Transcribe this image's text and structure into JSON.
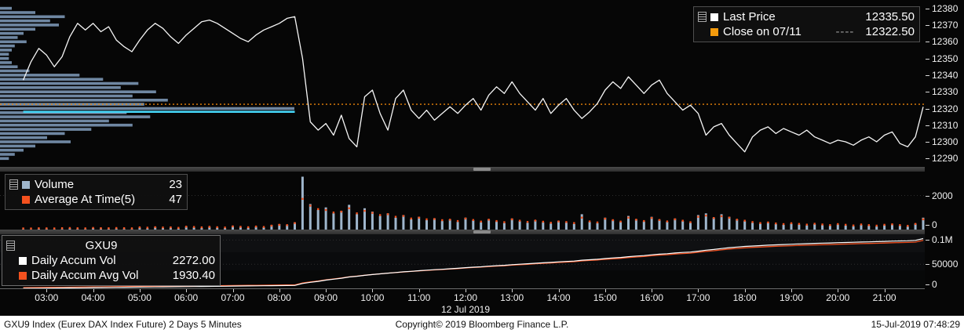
{
  "colors": {
    "background": "#060606",
    "axis_text": "#f0f0f0",
    "price_line": "#f5f5f5",
    "close_line": "#e8830a",
    "close_swatch": "#f59b0c",
    "poc_line": "#45d4f5",
    "profile_bar": "#7e9ab8",
    "volume_bar": "#9fb6cc",
    "avg_dot": "#f4511e",
    "accum_line": "#ffffff",
    "accum_avg_line": "#f04f1f",
    "legend_bg": "#151515",
    "legend_border": "#4e4e4e",
    "separator": "#3f3f3f",
    "status_bg": "#ffffff",
    "status_text": "#111111"
  },
  "top_panel": {
    "legend": {
      "last_price_label": "Last Price",
      "last_price_value": "12335.50",
      "close_label": "Close on 07/11",
      "close_dash": "----",
      "close_value": "12322.50"
    }
  },
  "volume_panel": {
    "legend": {
      "volume_label": "Volume",
      "volume_value": "23",
      "avg_label": "Average At Time(5)",
      "avg_value": "47"
    }
  },
  "accum_panel": {
    "title": "GXU9",
    "legend": {
      "accum_label": "Daily Accum Vol",
      "accum_value": "2272.00",
      "avg_label": "Daily Accum Avg Vol",
      "avg_value": "1930.40"
    }
  },
  "x_axis": {
    "tick_minutes": [
      180,
      240,
      300,
      360,
      420,
      480,
      540,
      600,
      660,
      720,
      780,
      840,
      900,
      960,
      1020,
      1080,
      1140,
      1200,
      1260
    ],
    "tick_labels": [
      "03:00",
      "04:00",
      "05:00",
      "06:00",
      "07:00",
      "08:00",
      "09:00",
      "10:00",
      "11:00",
      "12:00",
      "13:00",
      "14:00",
      "15:00",
      "16:00",
      "17:00",
      "18:00",
      "19:00",
      "20:00",
      "21:00"
    ],
    "date_label": "12 Jul 2019",
    "date_center_min": 720
  },
  "status_bar": {
    "left": "GXU9 Index (Eurex DAX Index Future) 2 Days 5 Minutes",
    "center": "Copyright© 2019 Bloomberg Finance L.P.",
    "right": "15-Jul-2019 07:48:29"
  },
  "chart_data": [
    {
      "name": "price",
      "type": "line",
      "series_label": "Last Price",
      "xlim_minutes": [
        120,
        1312
      ],
      "ylim": [
        12285,
        12385
      ],
      "start_min": 150,
      "step_min": 10,
      "tick_values": [
        12380,
        12370,
        12360,
        12350,
        12340,
        12330,
        12320,
        12310,
        12300,
        12290
      ],
      "tick_labels": [
        "12380",
        "12370",
        "12360",
        "12350",
        "12340",
        "12330",
        "12320",
        "12310",
        "12300",
        "12290"
      ],
      "close_value": 12322.5,
      "poc_line": {
        "price": 12318,
        "start_min": 150,
        "end_min": 500
      },
      "values": [
        12337,
        12348,
        12356,
        12352,
        12345,
        12351,
        12363,
        12371,
        12367,
        12371,
        12366,
        12369,
        12361,
        12357,
        12354,
        12361,
        12367,
        12371,
        12368,
        12363,
        12359,
        12364,
        12368,
        12372,
        12373,
        12371,
        12368,
        12365,
        12362,
        12360,
        12364,
        12367,
        12369,
        12371,
        12374,
        12375,
        12350,
        12312,
        12307,
        12311,
        12304,
        12316,
        12302,
        12297,
        12327,
        12331,
        12317,
        12307,
        12326,
        12331,
        12319,
        12314,
        12319,
        12313,
        12317,
        12321,
        12317,
        12322,
        12326,
        12319,
        12328,
        12333,
        12329,
        12336,
        12329,
        12324,
        12319,
        12326,
        12317,
        12322,
        12326,
        12319,
        12314,
        12318,
        12323,
        12331,
        12336,
        12332,
        12339,
        12334,
        12329,
        12334,
        12337,
        12329,
        12324,
        12319,
        12322,
        12317,
        12304,
        12309,
        12311,
        12304,
        12299,
        12294,
        12303,
        12307,
        12309,
        12305,
        12308,
        12306,
        12304,
        12307,
        12303,
        12301,
        12299,
        12301,
        12300,
        12298,
        12301,
        12303,
        12300,
        12304,
        12306,
        12299,
        12297,
        12303,
        12321
      ],
      "volume_profile": {
        "prices": [
          12380,
          12377.5,
          12375,
          12372.5,
          12370,
          12367.5,
          12365,
          12362.5,
          12360,
          12357.5,
          12355,
          12352.5,
          12350,
          12347.5,
          12345,
          12342.5,
          12340,
          12337.5,
          12335,
          12332.5,
          12330,
          12327.5,
          12325,
          12322.5,
          12320,
          12317.5,
          12315,
          12312.5,
          12310,
          12307.5,
          12305,
          12302.5,
          12300,
          12297.5,
          12295,
          12292.5,
          12290
        ],
        "widths": [
          4,
          12,
          22,
          17,
          20,
          12,
          8,
          6,
          9,
          5,
          4,
          3,
          3,
          4,
          6,
          10,
          27,
          35,
          47,
          41,
          53,
          45,
          57,
          49,
          100,
          43,
          51,
          37,
          45,
          31,
          22,
          16,
          24,
          12,
          8,
          5,
          3
        ]
      }
    },
    {
      "name": "volume",
      "type": "bar",
      "ylim": [
        0,
        3400
      ],
      "tick_values": [
        2000,
        0
      ],
      "tick_labels": [
        "2000",
        "0"
      ],
      "values": [
        30,
        20,
        45,
        60,
        25,
        35,
        80,
        50,
        40,
        90,
        60,
        45,
        70,
        55,
        40,
        120,
        80,
        150,
        90,
        110,
        70,
        180,
        130,
        100,
        160,
        120,
        90,
        200,
        150,
        110,
        170,
        140,
        260,
        320,
        280,
        420,
        3100,
        1500,
        1150,
        1300,
        950,
        1100,
        1450,
        900,
        1250,
        1050,
        800,
        950,
        700,
        850,
        600,
        750,
        550,
        650,
        500,
        600,
        450,
        700,
        550,
        420,
        600,
        480,
        380,
        650,
        500,
        400,
        550,
        430,
        350,
        500,
        420,
        330,
        900,
        450,
        380,
        700,
        560,
        450,
        800,
        600,
        480,
        750,
        580,
        460,
        650,
        500,
        400,
        850,
        950,
        700,
        900,
        750,
        600,
        500,
        400,
        350,
        420,
        320,
        280,
        350,
        300,
        250,
        320,
        260,
        220,
        300,
        240,
        200,
        280,
        230,
        190,
        260,
        300,
        220,
        180,
        350,
        700
      ],
      "avg_values": [
        70,
        65,
        80,
        75,
        70,
        85,
        90,
        80,
        75,
        95,
        85,
        80,
        90,
        85,
        75,
        130,
        110,
        140,
        120,
        130,
        100,
        170,
        150,
        130,
        160,
        140,
        120,
        190,
        160,
        140,
        180,
        150,
        230,
        280,
        260,
        380,
        1800,
        1400,
        1200,
        1150,
        1000,
        1050,
        1250,
        950,
        1100,
        980,
        850,
        900,
        750,
        800,
        650,
        700,
        600,
        620,
        550,
        580,
        500,
        650,
        560,
        470,
        580,
        500,
        430,
        600,
        520,
        450,
        530,
        460,
        400,
        480,
        440,
        380,
        700,
        480,
        420,
        640,
        550,
        470,
        700,
        580,
        500,
        680,
        560,
        480,
        600,
        520,
        430,
        750,
        820,
        680,
        780,
        700,
        580,
        520,
        440,
        380,
        420,
        360,
        320,
        370,
        330,
        290,
        340,
        300,
        260,
        320,
        280,
        240,
        300,
        260,
        230,
        280,
        310,
        260,
        220,
        330,
        600
      ]
    },
    {
      "name": "daily_accum_volume",
      "type": "line",
      "ylim": [
        0,
        112000
      ],
      "tick_values": [
        100000,
        50000,
        0
      ],
      "tick_labels": [
        "0.1M",
        "50000",
        "0"
      ],
      "accum_values": [
        0,
        170,
        340,
        515,
        685,
        855,
        1030,
        1200,
        1370,
        1545,
        1715,
        1885,
        2060,
        2230,
        2400,
        2570,
        2745,
        2915,
        3085,
        3260,
        3430,
        3600,
        3770,
        3945,
        4115,
        4285,
        4460,
        4630,
        4800,
        4970,
        5145,
        5315,
        5485,
        5660,
        5830,
        6000,
        10000,
        12500,
        14500,
        17000,
        19000,
        21000,
        23500,
        25000,
        27000,
        28500,
        30000,
        31500,
        32800,
        34200,
        35300,
        36500,
        37600,
        38600,
        39500,
        40600,
        41500,
        42800,
        43900,
        44700,
        45900,
        46900,
        47700,
        49000,
        50000,
        50900,
        52000,
        52900,
        53700,
        54800,
        55700,
        56500,
        58300,
        59300,
        60200,
        61700,
        62900,
        63900,
        65500,
        66800,
        67900,
        69500,
        70800,
        71800,
        73200,
        74300,
        75200,
        77000,
        79000,
        80500,
        82500,
        84200,
        85600,
        86800,
        87700,
        88500,
        89400,
        90100,
        90700,
        91400,
        92000,
        92500,
        93100,
        93600,
        94000,
        94600,
        95000,
        95400,
        95900,
        96300,
        96700,
        97200,
        97800,
        98200,
        98600,
        99300,
        103000
      ],
      "accum_avg_values": [
        1500,
        1660,
        1820,
        1990,
        2150,
        2310,
        2480,
        2640,
        2800,
        2970,
        3130,
        3290,
        3460,
        3620,
        3780,
        3940,
        4110,
        4270,
        4430,
        4600,
        4760,
        4920,
        5080,
        5250,
        5410,
        5570,
        5740,
        5900,
        6060,
        6220,
        6390,
        6550,
        6710,
        6880,
        7040,
        7200,
        11000,
        13380,
        15280,
        17650,
        19550,
        21450,
        23830,
        25250,
        27150,
        28580,
        30000,
        31430,
        32660,
        33990,
        35040,
        36180,
        37220,
        38170,
        39030,
        40070,
        40930,
        42160,
        43210,
        43970,
        45110,
        46060,
        46820,
        48050,
        49000,
        49860,
        50900,
        51760,
        52520,
        53560,
        54420,
        55180,
        56890,
        57840,
        58690,
        60120,
        61260,
        62210,
        63730,
        64960,
        66010,
        67530,
        68760,
        69710,
        71040,
        72090,
        72940,
        74650,
        76550,
        77980,
        79880,
        81490,
        82820,
        83960,
        84820,
        85580,
        86430,
        87100,
        87670,
        88330,
        88900,
        89380,
        89950,
        90420,
        90800,
        91370,
        91750,
        92130,
        92610,
        92990,
        93370,
        93840,
        94410,
        94790,
        95170,
        95840,
        99350
      ]
    }
  ]
}
